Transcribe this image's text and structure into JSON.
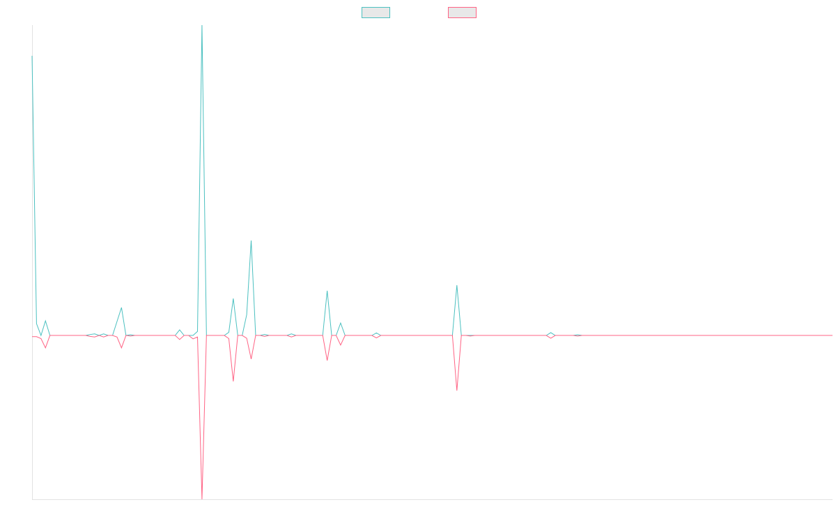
{
  "chart_data": {
    "type": "line",
    "ylim": [
      -52.8,
      100
    ],
    "legend": "top",
    "series": [
      {
        "color": "#4bc0c0",
        "values": [
          90.1,
          3.8,
          0,
          4.7,
          0,
          0,
          0,
          0,
          0,
          0,
          0,
          0,
          0,
          0.3,
          0.5,
          0,
          0.5,
          0,
          0,
          4.5,
          9.0,
          0,
          0.2,
          0,
          0,
          0,
          0,
          0,
          0,
          0,
          0,
          0,
          0,
          1.8,
          0,
          0,
          0,
          1.3,
          100,
          0,
          0,
          0,
          0,
          0,
          1.0,
          11.9,
          0,
          0,
          6.7,
          30.6,
          0,
          0,
          0.3,
          0,
          0,
          0,
          0,
          0,
          0.5,
          0,
          0,
          0,
          0,
          0,
          0,
          0,
          14.4,
          0,
          0,
          4.0,
          0,
          0,
          0,
          0,
          0,
          0,
          0,
          0.8,
          0,
          0,
          0,
          0,
          0,
          0,
          0,
          0,
          0,
          0,
          0,
          0,
          0,
          0,
          0,
          0,
          0,
          16.2,
          0,
          0,
          0,
          0,
          0,
          0,
          0,
          0,
          0,
          0,
          0,
          0,
          0,
          0,
          0,
          0,
          0,
          0,
          0,
          0,
          0.9,
          0,
          0,
          0,
          0,
          0,
          0.2,
          0,
          0,
          0,
          0,
          0,
          0,
          0,
          0,
          0,
          0,
          0,
          0,
          0,
          0,
          0,
          0,
          0,
          0,
          0,
          0,
          0,
          0,
          0,
          0,
          0,
          0,
          0,
          0,
          0,
          0,
          0,
          0,
          0,
          0,
          0,
          0,
          0,
          0,
          0,
          0,
          0,
          0,
          0,
          0,
          0,
          0,
          0,
          0,
          0,
          0,
          0,
          0,
          0,
          0,
          0,
          0,
          0
        ]
      },
      {
        "color": "#ff6384",
        "values": [
          -0.4,
          -0.4,
          -1,
          -4.0,
          0,
          0,
          0,
          0,
          0,
          0,
          0,
          0,
          0,
          -0.3,
          -0.5,
          0,
          -0.5,
          0,
          0,
          -0.5,
          -4.0,
          0,
          -0.2,
          0,
          0,
          0,
          0,
          0,
          0,
          0,
          0,
          0,
          0,
          -1.3,
          0,
          0,
          -1.1,
          -0.5,
          -52.8,
          0,
          0,
          0,
          0,
          0,
          -1.0,
          -14.8,
          0,
          0,
          -0.9,
          -7.6,
          0,
          0,
          -0.3,
          0,
          0,
          0,
          0,
          0,
          -0.5,
          0,
          0,
          0,
          0,
          0,
          0,
          0,
          -8.1,
          0,
          0,
          -3.1,
          0,
          0,
          0,
          0,
          0,
          0,
          0,
          -0.8,
          0,
          0,
          0,
          0,
          0,
          0,
          0,
          0,
          0,
          0,
          0,
          0,
          0,
          0,
          0,
          0,
          0,
          -17.8,
          0,
          0,
          -0.2,
          0,
          0,
          0,
          0,
          0,
          0,
          0,
          0,
          0,
          0,
          0,
          0,
          0,
          0,
          0,
          0,
          0,
          -0.9,
          0,
          0,
          0,
          0,
          0,
          -0.2,
          0,
          0,
          0,
          0,
          0,
          0,
          0,
          0,
          0,
          0,
          0,
          0,
          0,
          0,
          0,
          0,
          0,
          0,
          0,
          0,
          0,
          0,
          0,
          0,
          0,
          0,
          0,
          0,
          0,
          0,
          0,
          0,
          0,
          0,
          0,
          0,
          0,
          0,
          0,
          0,
          0,
          0,
          0,
          0,
          0,
          0,
          0,
          0,
          0,
          0,
          0,
          0,
          0,
          0,
          0,
          0,
          0
        ]
      }
    ]
  }
}
